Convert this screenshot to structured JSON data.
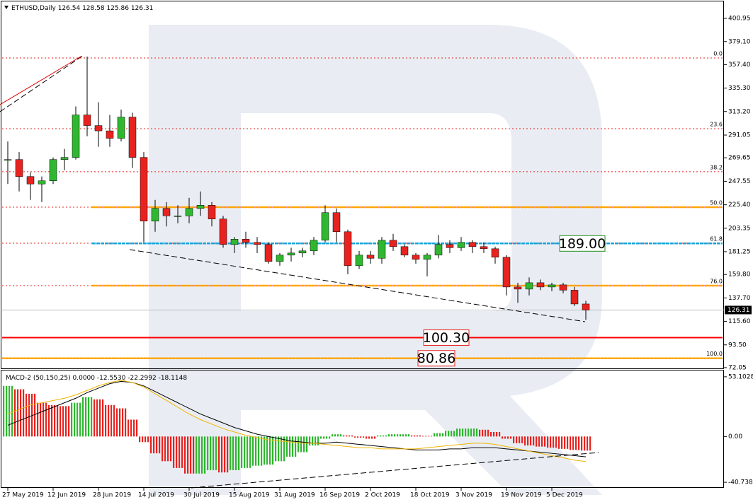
{
  "chart_data": [
    {
      "type": "candlestick",
      "symbol": "ETHUSD,Daily",
      "ohlc": [
        126.54,
        128.58,
        125.86,
        126.31
      ],
      "categories": [
        "27 May 2019",
        null,
        null,
        null,
        "12 Jun 2019",
        null,
        null,
        null,
        "28 Jun 2019",
        null,
        null,
        null,
        "14 Jul 2019",
        null,
        null,
        null,
        "30 Jul 2019",
        null,
        null,
        null,
        "15 Aug 2019",
        null,
        null,
        null,
        "31 Aug 2019",
        null,
        null,
        null,
        "16 Sep 2019",
        null,
        null,
        null,
        "2 Oct 2019",
        null,
        null,
        null,
        "18 Oct 2019",
        null,
        null,
        null,
        "3 Nov 2019",
        null,
        null,
        null,
        "19 Nov 2019",
        null,
        null,
        null,
        "5 Dec 2019",
        null,
        null,
        null
      ],
      "open": [
        268,
        268,
        252,
        245,
        248,
        268,
        270,
        310,
        300,
        295,
        288,
        308,
        270,
        210,
        222,
        215,
        215,
        222,
        225,
        212,
        188,
        193,
        190,
        188,
        172,
        178,
        180,
        182,
        192,
        218,
        200,
        168,
        178,
        175,
        192,
        186,
        178,
        174,
        178,
        188,
        185,
        190,
        186,
        184,
        176,
        148,
        146,
        152,
        148,
        150,
        145,
        132
      ],
      "high": [
        285,
        275,
        256,
        252,
        270,
        278,
        318,
        365,
        322,
        310,
        315,
        312,
        275,
        230,
        228,
        225,
        232,
        238,
        228,
        215,
        195,
        200,
        195,
        190,
        180,
        185,
        185,
        195,
        225,
        222,
        202,
        182,
        182,
        195,
        198,
        188,
        180,
        180,
        197,
        192,
        195,
        192,
        190,
        186,
        178,
        152,
        157,
        155,
        152,
        152,
        148,
        135
      ],
      "low": [
        245,
        238,
        230,
        228,
        245,
        258,
        268,
        290,
        280,
        280,
        285,
        260,
        190,
        200,
        205,
        208,
        208,
        215,
        205,
        185,
        180,
        185,
        180,
        170,
        168,
        172,
        176,
        178,
        190,
        190,
        160,
        165,
        170,
        170,
        182,
        176,
        170,
        158,
        175,
        180,
        182,
        180,
        180,
        170,
        140,
        133,
        140,
        145,
        144,
        142,
        130,
        117
      ],
      "close": [
        268,
        252,
        245,
        248,
        268,
        270,
        310,
        300,
        295,
        288,
        308,
        270,
        210,
        222,
        215,
        215,
        222,
        225,
        212,
        188,
        193,
        190,
        188,
        172,
        178,
        180,
        182,
        192,
        218,
        200,
        168,
        178,
        175,
        192,
        186,
        178,
        174,
        178,
        188,
        185,
        190,
        186,
        184,
        176,
        148,
        146,
        152,
        148,
        150,
        145,
        132,
        126.31
      ],
      "up_color": "#2fb82f",
      "down_color": "#e8231f",
      "ylim": [
        70.7,
        416.9
      ],
      "yticks": [
        400.95,
        {
          "value": 379.1,
          "label": "379.10"
        },
        {
          "value": 357.4,
          "label": "357.40"
        },
        {
          "value": 335.3,
          "label": "335.30"
        },
        {
          "value": 313.2,
          "label": "313.20"
        },
        291.05,
        269.65,
        247.55,
        {
          "value": 225.4,
          "label": "225.40"
        },
        203.35,
        181.25,
        {
          "value": 159.8,
          "label": "159.80"
        },
        {
          "value": 137.7,
          "label": "137.70"
        },
        {
          "value": 115.6,
          "label": "115.60"
        },
        {
          "value": 93.5,
          "label": "93.50"
        },
        72.05
      ],
      "last_price": 126.31,
      "fib_levels": [
        {
          "label": "0.0",
          "value": 363.6
        },
        {
          "label": "23.6",
          "value": 297.1
        },
        {
          "label": "38.2",
          "value": 256.5
        },
        {
          "label": "50.0",
          "value": 223.2,
          "highlight": "#ffa500"
        },
        {
          "label": "61.8",
          "value": 189.2
        },
        {
          "label": "76.0",
          "value": 149.3,
          "highlight": "#ffa500"
        },
        {
          "label": "100.0",
          "value": 80.86,
          "highlight": "#ffa500"
        }
      ],
      "levels": [
        {
          "value": 189,
          "label": "189.00",
          "color": "#1aa3d9",
          "box_color": "#1e8c1e"
        },
        {
          "value": 100.3,
          "label": "100.30",
          "color": "#ff0000",
          "box_color": "#e8231f"
        },
        {
          "value": 80.86,
          "color": "#ffa500",
          "box_color": "#e8231f"
        }
      ]
    },
    {
      "type": "macd",
      "title": "MACD-2 (50,150,25)",
      "indicator_values": [
        {
          "value": 0,
          "label": "0.0000"
        },
        {
          "value": -12.553,
          "label": "-12.5530"
        },
        -22.2992,
        -18.1148
      ],
      "histogram": [
        45,
        42,
        38,
        30,
        28,
        27,
        30,
        35,
        33,
        28,
        25,
        15,
        -5,
        -15,
        -22,
        -28,
        -33,
        -33,
        -30,
        -32,
        -30,
        -28,
        -26,
        -25,
        -22,
        -18,
        -14,
        -8,
        -2,
        2,
        1,
        -1,
        -2,
        1,
        2,
        2,
        1,
        0.5,
        3,
        5,
        7,
        7,
        6,
        4,
        -2,
        -6,
        -8,
        -9,
        -10,
        -11,
        -12,
        -12.55
      ],
      "up_color": "#2fb82f",
      "down_color": "#e8231f",
      "series": [
        {
          "color": "#000000",
          "values": [
            10,
            14,
            18,
            22,
            26,
            30,
            34,
            39,
            43,
            47,
            49,
            48,
            45,
            40,
            35,
            30,
            25,
            20,
            16,
            12,
            8,
            5,
            2,
            0,
            -2,
            -4,
            -5,
            -6,
            -6,
            -5,
            -6,
            -7,
            -8,
            -9,
            -10,
            -11,
            -12,
            -12,
            -12,
            -11,
            -11,
            -10,
            -10,
            -10,
            -11,
            -12,
            -13,
            -14,
            -15,
            -16,
            -17,
            -18.1148
          ]
        },
        {
          "color": "#f0b400",
          "values": [
            20,
            24,
            28,
            30,
            32,
            34,
            37,
            41,
            45,
            48,
            50,
            48,
            44,
            38,
            32,
            26,
            20,
            15,
            11,
            7,
            4,
            1,
            -1,
            -3,
            -4,
            -5,
            -6,
            -6,
            -7,
            -8,
            -9,
            -10,
            -10,
            -11,
            -11,
            -11,
            -11,
            -10,
            -9,
            -8,
            -7,
            -6,
            -6,
            -7,
            -9,
            -11,
            -13,
            -15,
            -17,
            -19,
            -21,
            -22.2992
          ]
        }
      ],
      "ylim": [
        -45.7,
        58.7
      ],
      "yticks": [
        53.1028,
        {
          "value": 0,
          "label": "0.00"
        },
        -40.7385
      ]
    }
  ]
}
